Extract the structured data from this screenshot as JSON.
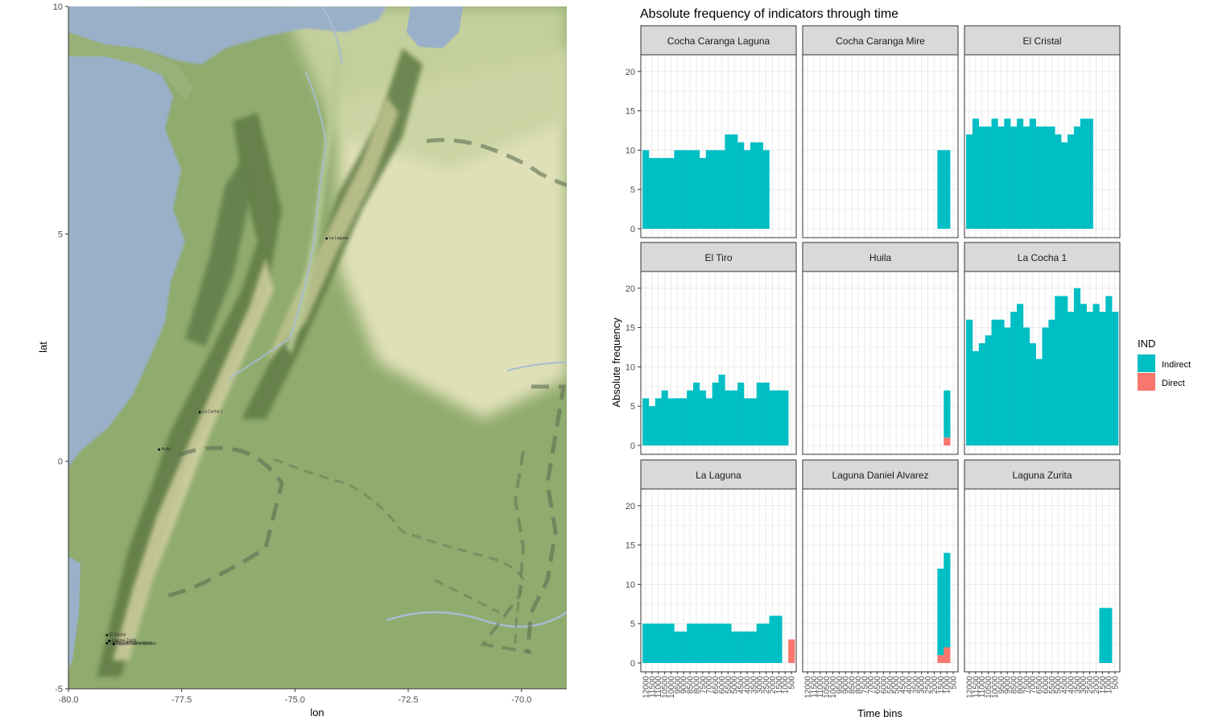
{
  "chart_data": [
    {
      "type": "scatter",
      "xlabel": "lon",
      "ylabel": "lat",
      "xlim": [
        -80.0,
        -69.0
      ],
      "ylim": [
        -5,
        10
      ],
      "x_ticks": [
        "-80.0",
        "-77.5",
        "-75.0",
        "-72.5",
        "-70.0"
      ],
      "y_ticks": [
        "-5",
        "0",
        "5",
        "10"
      ],
      "background": "terrain basemap",
      "points": [
        {
          "label": "La Laguna",
          "lon": -74.3,
          "lat": 4.9
        },
        {
          "label": "La Cocha 1",
          "lon": -77.1,
          "lat": 1.08
        },
        {
          "label": "Huila",
          "lon": -78.0,
          "lat": 0.26
        },
        {
          "label": "El Cristal",
          "lon": -79.15,
          "lat": -3.82
        },
        {
          "label": "Laguna Zurita",
          "lon": -79.1,
          "lat": -3.95
        },
        {
          "label": "Cocha Caranga Laguna",
          "lon": -79.15,
          "lat": -4.0
        },
        {
          "label": "Laguna Daniel Alvarez",
          "lon": -79.0,
          "lat": -4.02
        }
      ]
    },
    {
      "type": "bar",
      "title": "Absolute frequency of indicators through time",
      "xlabel": "Time bins",
      "ylabel": "Absolute frequency",
      "ylim": [
        0,
        21
      ],
      "y_ticks": [
        "0",
        "5",
        "10",
        "15",
        "20"
      ],
      "categories": [
        "12000",
        "11500",
        "11000",
        "10500",
        "10000",
        "9500",
        "9000",
        "8500",
        "8000",
        "7500",
        "7000",
        "6500",
        "6000",
        "5500",
        "5000",
        "4500",
        "4000",
        "3500",
        "3000",
        "2500",
        "2000",
        "1500",
        "1000",
        "500"
      ],
      "stacked": true,
      "legend": {
        "title": "IND",
        "position": "right",
        "entries": [
          {
            "name": "Indirect",
            "color": "#00BFC4"
          },
          {
            "name": "Direct",
            "color": "#F8766D"
          }
        ]
      },
      "panels": [
        {
          "name": "Cocha Caranga Laguna",
          "indirect": [
            10,
            9,
            9,
            9,
            9,
            10,
            10,
            10,
            10,
            9,
            10,
            10,
            10,
            12,
            12,
            11,
            10,
            11,
            11,
            10,
            0,
            0,
            0,
            0
          ],
          "direct": [
            0,
            0,
            0,
            0,
            0,
            0,
            0,
            0,
            0,
            0,
            0,
            0,
            0,
            0,
            0,
            0,
            0,
            0,
            0,
            0,
            0,
            0,
            0,
            0
          ]
        },
        {
          "name": "Cocha Caranga Mire",
          "indirect": [
            0,
            0,
            0,
            0,
            0,
            0,
            0,
            0,
            0,
            0,
            0,
            0,
            0,
            0,
            0,
            0,
            0,
            0,
            0,
            0,
            0,
            10,
            10,
            0
          ],
          "direct": [
            0,
            0,
            0,
            0,
            0,
            0,
            0,
            0,
            0,
            0,
            0,
            0,
            0,
            0,
            0,
            0,
            0,
            0,
            0,
            0,
            0,
            0,
            0,
            0
          ]
        },
        {
          "name": "El Cristal",
          "indirect": [
            12,
            14,
            13,
            13,
            14,
            13,
            14,
            13,
            14,
            13,
            14,
            13,
            13,
            13,
            12,
            11,
            12,
            13,
            14,
            14,
            0,
            0,
            0,
            0
          ],
          "direct": [
            0,
            0,
            0,
            0,
            0,
            0,
            0,
            0,
            0,
            0,
            0,
            0,
            0,
            0,
            0,
            0,
            0,
            0,
            0,
            0,
            0,
            0,
            0,
            0
          ]
        },
        {
          "name": "El Tiro",
          "indirect": [
            6,
            5,
            6,
            7,
            6,
            6,
            6,
            7,
            8,
            7,
            6,
            8,
            9,
            7,
            7,
            8,
            6,
            6,
            8,
            8,
            7,
            7,
            7,
            0
          ],
          "direct": [
            0,
            0,
            0,
            0,
            0,
            0,
            0,
            0,
            0,
            0,
            0,
            0,
            0,
            0,
            0,
            0,
            0,
            0,
            0,
            0,
            0,
            0,
            0,
            0
          ]
        },
        {
          "name": "Huila",
          "indirect": [
            0,
            0,
            0,
            0,
            0,
            0,
            0,
            0,
            0,
            0,
            0,
            0,
            0,
            0,
            0,
            0,
            0,
            0,
            0,
            0,
            0,
            0,
            6,
            0
          ],
          "direct": [
            0,
            0,
            0,
            0,
            0,
            0,
            0,
            0,
            0,
            0,
            0,
            0,
            0,
            0,
            0,
            0,
            0,
            0,
            0,
            0,
            0,
            0,
            1,
            0
          ]
        },
        {
          "name": "La Cocha 1",
          "indirect": [
            16,
            12,
            13,
            14,
            16,
            16,
            15,
            17,
            18,
            15,
            13,
            11,
            15,
            16,
            19,
            19,
            17,
            20,
            18,
            17,
            18,
            17,
            19,
            17
          ],
          "direct": [
            0,
            0,
            0,
            0,
            0,
            0,
            0,
            0,
            0,
            0,
            0,
            0,
            0,
            0,
            0,
            0,
            0,
            0,
            0,
            0,
            0,
            0,
            0,
            0
          ]
        },
        {
          "name": "La Laguna",
          "indirect": [
            5,
            5,
            5,
            5,
            5,
            4,
            4,
            5,
            5,
            5,
            5,
            5,
            5,
            5,
            4,
            4,
            4,
            4,
            5,
            5,
            6,
            6,
            0,
            0
          ],
          "direct": [
            0,
            0,
            0,
            0,
            0,
            0,
            0,
            0,
            0,
            0,
            0,
            0,
            0,
            0,
            0,
            0,
            0,
            0,
            0,
            0,
            0,
            0,
            0,
            3
          ]
        },
        {
          "name": "Laguna Daniel Alvarez",
          "indirect": [
            0,
            0,
            0,
            0,
            0,
            0,
            0,
            0,
            0,
            0,
            0,
            0,
            0,
            0,
            0,
            0,
            0,
            0,
            0,
            0,
            0,
            11,
            12,
            0
          ],
          "direct": [
            0,
            0,
            0,
            0,
            0,
            0,
            0,
            0,
            0,
            0,
            0,
            0,
            0,
            0,
            0,
            0,
            0,
            0,
            0,
            0,
            0,
            1,
            2,
            0
          ]
        },
        {
          "name": "Laguna Zurita",
          "indirect": [
            0,
            0,
            0,
            0,
            0,
            0,
            0,
            0,
            0,
            0,
            0,
            0,
            0,
            0,
            0,
            0,
            0,
            0,
            0,
            0,
            0,
            7,
            7,
            0
          ],
          "direct": [
            0,
            0,
            0,
            0,
            0,
            0,
            0,
            0,
            0,
            0,
            0,
            0,
            0,
            0,
            0,
            0,
            0,
            0,
            0,
            0,
            0,
            0,
            0,
            0
          ]
        }
      ]
    }
  ],
  "colors": {
    "indirect": "#00BFC4",
    "direct": "#F8766D",
    "strip_fill": "#D9D9D9",
    "grid": "#EBEBEB",
    "water": "#9AB0C9",
    "lowland": "#8FAB6E",
    "plains": "#E4E3BC"
  }
}
